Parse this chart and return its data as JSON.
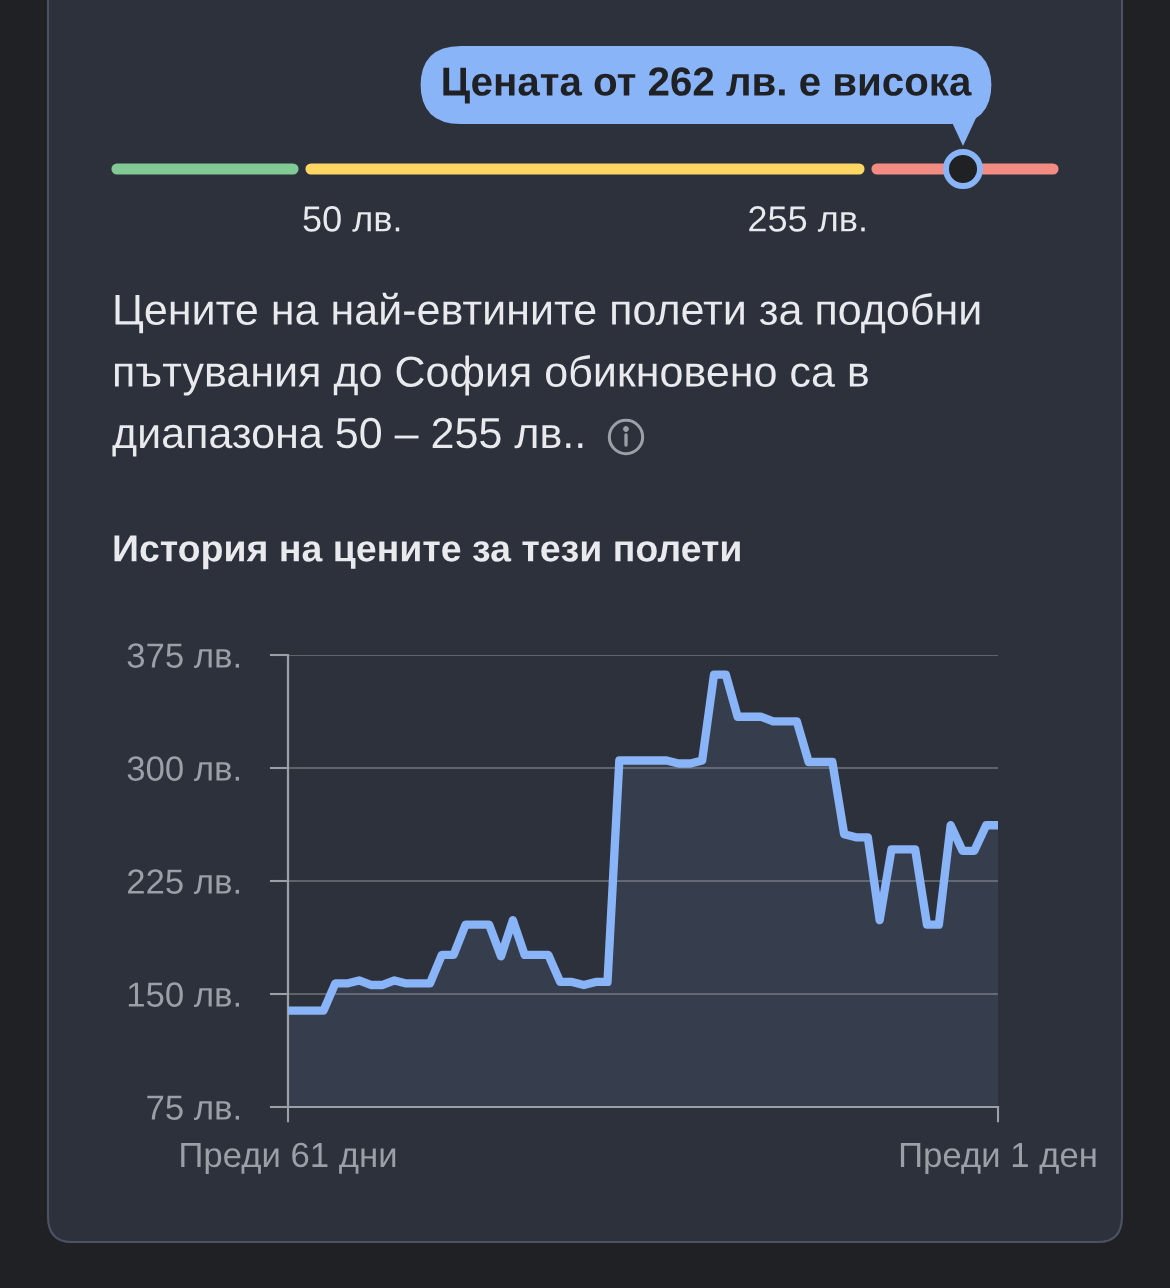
{
  "chart_data": [
    {
      "type": "other",
      "annotations": [
        "Цената от 262 лв. е висока",
        "50 лв.",
        "255 лв.",
        "Цените на най-евтините полети за подобни пътувания до София обикновено са в диапазона 50 – 255 лв.."
      ]
    },
    {
      "type": "area",
      "title": "История на цените за тези полети",
      "categories": [
        "Преди 61 дни",
        null,
        null,
        null,
        null,
        null,
        null,
        null,
        null,
        null,
        null,
        null,
        null,
        null,
        null,
        null,
        null,
        null,
        null,
        null,
        null,
        null,
        null,
        null,
        null,
        null,
        null,
        null,
        null,
        null,
        null,
        null,
        null,
        null,
        null,
        null,
        null,
        null,
        null,
        null,
        null,
        null,
        null,
        null,
        null,
        null,
        null,
        null,
        null,
        null,
        null,
        null,
        null,
        null,
        null,
        null,
        null,
        null,
        null,
        null,
        "Преди 1 ден"
      ],
      "series": [
        {
          "color": "#8ab4f8",
          "values": [
            139,
            139,
            139,
            139,
            157,
            157,
            159,
            156,
            156,
            159,
            157,
            157,
            157,
            176,
            176,
            196,
            196,
            196,
            175,
            199,
            176,
            176,
            176,
            158,
            158,
            156,
            158,
            158,
            305,
            305,
            305,
            305,
            305,
            303,
            303,
            305,
            362,
            362,
            334,
            334,
            334,
            331,
            331,
            331,
            304,
            304,
            304,
            256,
            254,
            254,
            199,
            246,
            246,
            246,
            196,
            196,
            262,
            245,
            245,
            262,
            262
          ]
        }
      ],
      "ylim": [
        75,
        375
      ],
      "yticks": [
        {
          "value": 75,
          "label": "75 лв."
        },
        {
          "value": 150,
          "label": "150 лв."
        },
        {
          "value": 225,
          "label": "225 лв."
        },
        {
          "value": 300,
          "label": "300 лв."
        },
        {
          "value": 375,
          "label": "375 лв."
        }
      ],
      "grid": "y"
    }
  ]
}
